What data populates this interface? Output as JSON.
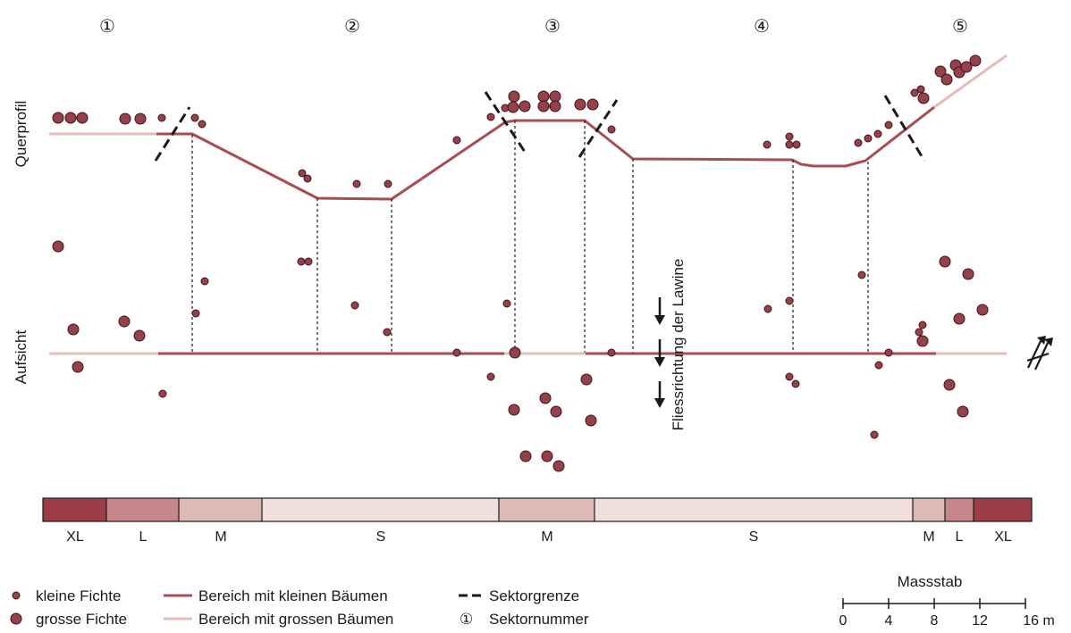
{
  "diagram": {
    "side_labels": {
      "profile": "Querprofil",
      "plan": "Aufsicht"
    },
    "flow_label": "Fliessrichtung der Lawine",
    "sectors": [
      "1",
      "2",
      "3",
      "4",
      "5"
    ],
    "sector_symbols": [
      "①",
      "②",
      "③",
      "④",
      "⑤"
    ],
    "size_classes": [
      "XL",
      "L",
      "M",
      "S",
      "M",
      "S",
      "M",
      "L",
      "XL"
    ],
    "legend": {
      "small_tree": "kleine Fichte",
      "large_tree": "grosse Fichte",
      "small_trees_zone": "Bereich mit kleinen Bäumen",
      "large_trees_zone": "Bereich mit grossen Bäumen",
      "sector_boundary": "Sektorgrenze",
      "sector_number_symbol": "①",
      "sector_number": "Sektornummer"
    },
    "scale": {
      "title": "Massstab",
      "ticks": [
        "0",
        "4",
        "8",
        "12",
        "16 m"
      ]
    }
  },
  "colors": {
    "tree_fill": "#96414a",
    "small_zone_line": "#a84b52",
    "large_zone_line": "#e3bdb9",
    "class_XL": "#9d3d47",
    "class_L": "#c5878a",
    "class_M": "#debab4",
    "class_S": "#f1dfdd",
    "ink": "#1a1a1a"
  }
}
